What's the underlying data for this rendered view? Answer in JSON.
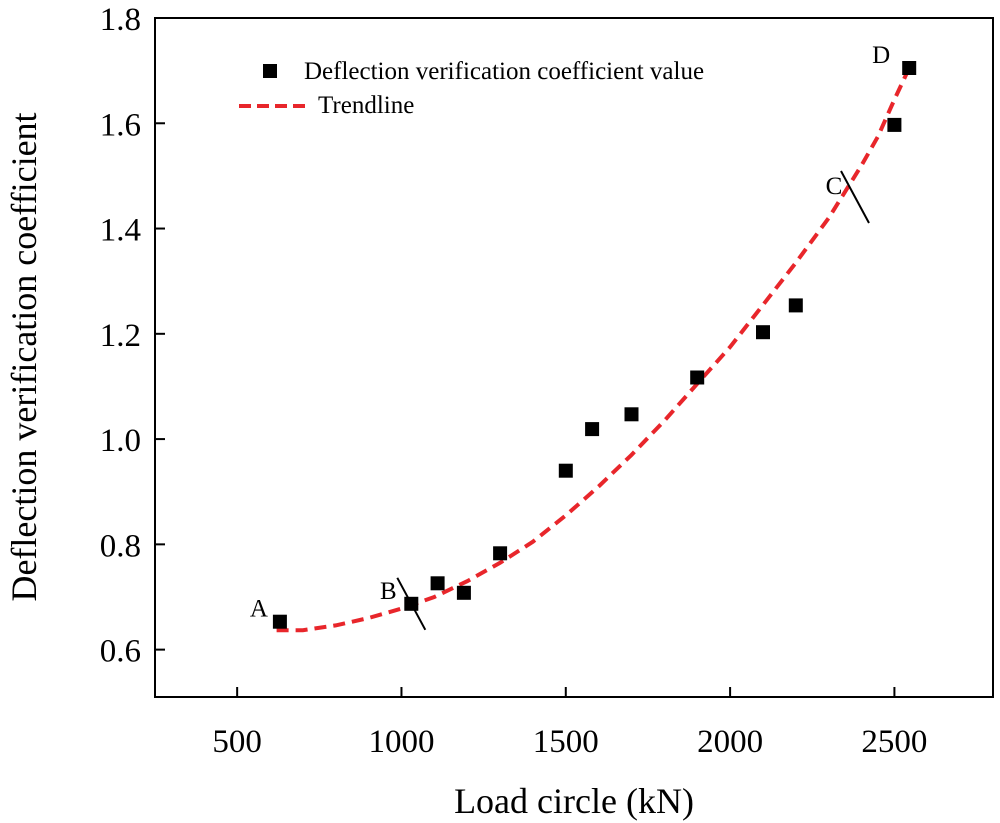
{
  "chart_data": {
    "type": "scatter",
    "title": "",
    "xlabel": "Load circle (kN)",
    "ylabel": "Deflection verification coefficient",
    "xlim": [
      250,
      2800
    ],
    "ylim": [
      0.51,
      1.8
    ],
    "xticks": [
      500,
      1000,
      1500,
      2000,
      2500
    ],
    "yticks": [
      0.6,
      0.8,
      1.0,
      1.2,
      1.4,
      1.6,
      1.8
    ],
    "xtick_labels": [
      "500",
      "1000",
      "1500",
      "2000",
      "2500"
    ],
    "ytick_labels": [
      "0.6",
      "0.8",
      "1.0",
      "1.2",
      "1.4",
      "1.6",
      "1.8"
    ],
    "grid": false,
    "legend_position": "top-left",
    "series": [
      {
        "name": "Deflection verification coefficient value",
        "kind": "scatter",
        "marker": "square",
        "color": "#000000",
        "x": [
          630,
          1030,
          1110,
          1190,
          1300,
          1500,
          1580,
          1700,
          1900,
          2100,
          2200,
          2500,
          2545
        ],
        "y": [
          0.653,
          0.687,
          0.726,
          0.708,
          0.783,
          0.94,
          1.019,
          1.047,
          1.117,
          1.203,
          1.254,
          1.597,
          1.705
        ]
      },
      {
        "name": "Trendline",
        "kind": "line",
        "style": "dashed",
        "color": "#e8262b",
        "x": [
          620,
          700,
          800,
          900,
          1000,
          1100,
          1200,
          1300,
          1400,
          1500,
          1600,
          1700,
          1800,
          1900,
          2000,
          2100,
          2200,
          2300,
          2400,
          2450,
          2500,
          2530,
          2545
        ],
        "y": [
          0.637,
          0.637,
          0.646,
          0.66,
          0.678,
          0.7,
          0.73,
          0.765,
          0.805,
          0.855,
          0.91,
          0.97,
          1.035,
          1.105,
          1.175,
          1.255,
          1.335,
          1.42,
          1.52,
          1.575,
          1.645,
          1.685,
          1.705
        ]
      }
    ],
    "annotations": [
      {
        "text": "A",
        "x": 630,
        "y": 0.653,
        "kind": "label"
      },
      {
        "text": "B",
        "x": 1030,
        "y": 0.687,
        "kind": "label-with-divider"
      },
      {
        "text": "C",
        "x": 2380,
        "y": 1.46,
        "kind": "label-with-divider"
      },
      {
        "text": "D",
        "x": 2545,
        "y": 1.705,
        "kind": "label"
      }
    ]
  }
}
